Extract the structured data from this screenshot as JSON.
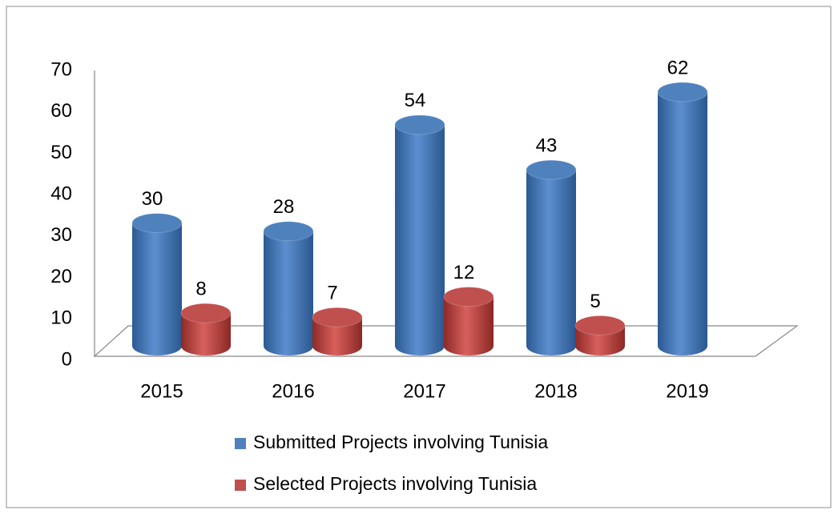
{
  "chart_data": {
    "type": "bar3d",
    "categories": [
      "2015",
      "2016",
      "2017",
      "2018",
      "2019"
    ],
    "series": [
      {
        "name": "Submitted Projects involving Tunisia",
        "color": "#4f81bd",
        "values": [
          30,
          28,
          54,
          43,
          62
        ]
      },
      {
        "name": "Selected Projects involving Tunisia",
        "color": "#c0504d",
        "values": [
          8,
          7,
          12,
          5,
          null
        ]
      }
    ],
    "ylim": [
      0,
      70
    ],
    "yticks": [
      0,
      10,
      20,
      30,
      40,
      50,
      60,
      70
    ],
    "legend": "bottom"
  }
}
